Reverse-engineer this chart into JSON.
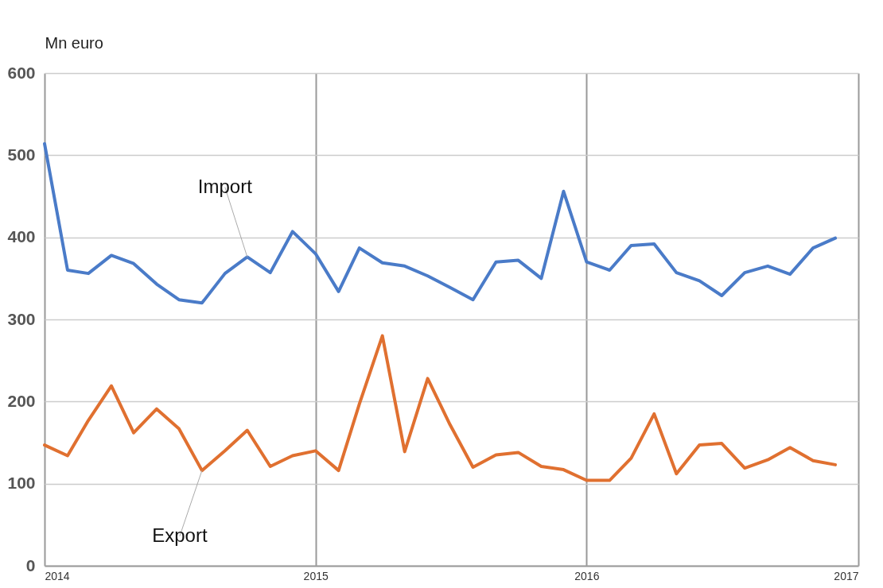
{
  "chart_data": {
    "type": "line",
    "ylabel": "Mn euro",
    "x": [
      "2014-01",
      "2014-02",
      "2014-03",
      "2014-04",
      "2014-05",
      "2014-06",
      "2014-07",
      "2014-08",
      "2014-09",
      "2014-10",
      "2014-11",
      "2014-12",
      "2015-01",
      "2015-02",
      "2015-03",
      "2015-04",
      "2015-05",
      "2015-06",
      "2015-07",
      "2015-08",
      "2015-09",
      "2015-10",
      "2015-11",
      "2015-12",
      "2016-01",
      "2016-02",
      "2016-03",
      "2016-04",
      "2016-05",
      "2016-06",
      "2016-07",
      "2016-08",
      "2016-09",
      "2016-10",
      "2016-11",
      "2016-12"
    ],
    "series": [
      {
        "name": "Import",
        "color": "#4a7bc8",
        "values": [
          514,
          360,
          356,
          378,
          368,
          343,
          324,
          320,
          356,
          376,
          357,
          407,
          380,
          334,
          387,
          369,
          365,
          353,
          339,
          324,
          370,
          372,
          350,
          456,
          370,
          360,
          390,
          392,
          357,
          347,
          329,
          357,
          365,
          355,
          387,
          399
        ]
      },
      {
        "name": "Export",
        "color": "#e07030",
        "values": [
          147,
          134,
          177,
          219,
          162,
          191,
          167,
          116,
          140,
          165,
          121,
          134,
          140,
          116,
          197,
          280,
          139,
          228,
          172,
          120,
          135,
          138,
          121,
          117,
          104,
          104,
          131,
          185,
          112,
          147,
          149,
          119,
          129,
          144,
          128,
          123
        ]
      }
    ],
    "xlim": [
      "2014",
      "2017"
    ],
    "xticks": [
      "2014",
      "2015",
      "2016",
      "2017"
    ],
    "ylim": [
      0,
      600
    ],
    "yticks": [
      0,
      100,
      200,
      300,
      400,
      500,
      600
    ],
    "grid": true,
    "line_style": "solid"
  }
}
